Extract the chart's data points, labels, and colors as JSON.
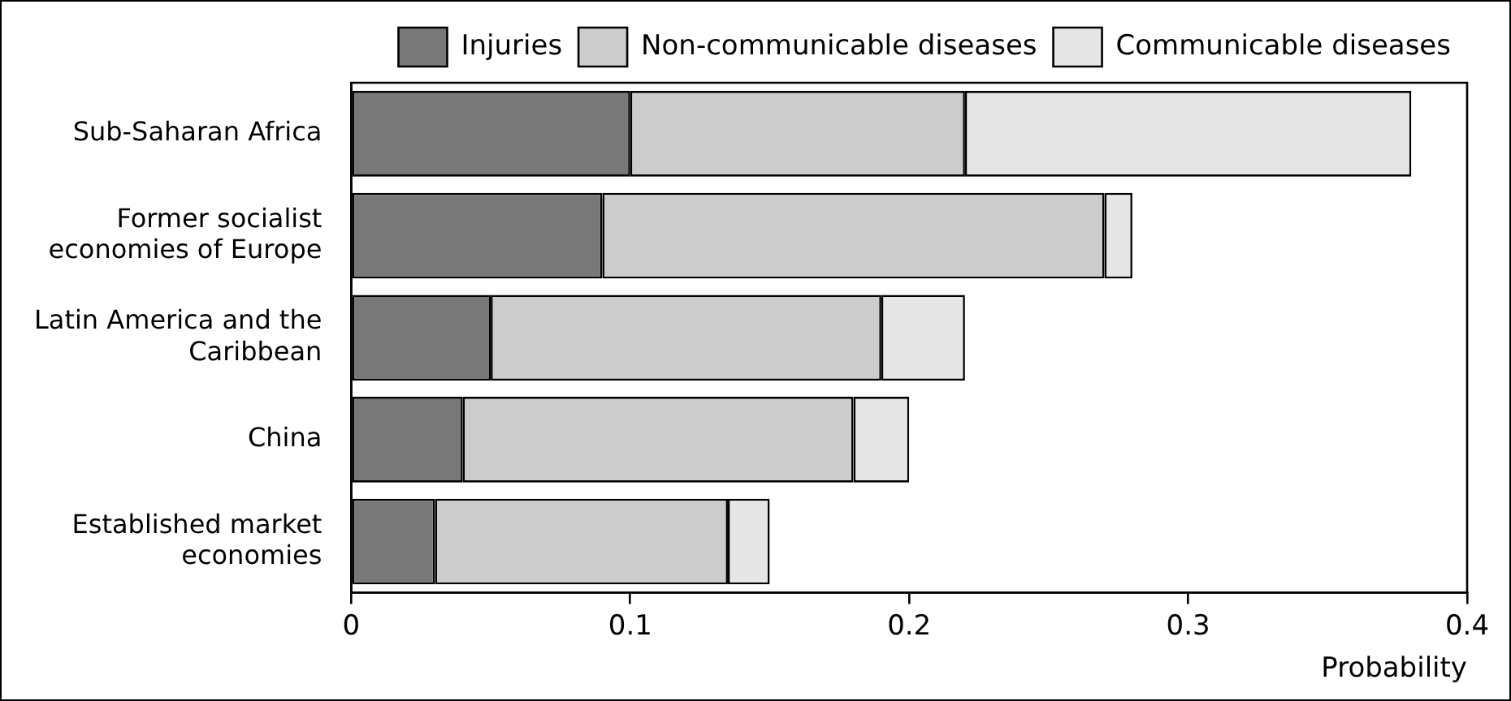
{
  "chart_data": {
    "type": "bar",
    "orientation": "horizontal",
    "stacked": true,
    "xlabel": "Probability",
    "categories": [
      "Sub-Saharan Africa",
      "Former socialist economies of Europe",
      "Latin America and the Caribbean",
      "China",
      "Established market economies"
    ],
    "series": [
      {
        "name": "Injuries",
        "color": "#787878",
        "values": [
          0.1,
          0.09,
          0.05,
          0.04,
          0.03
        ]
      },
      {
        "name": "Non-communicable diseases",
        "color": "#cccccc",
        "values": [
          0.12,
          0.18,
          0.14,
          0.14,
          0.105
        ]
      },
      {
        "name": "Communicable diseases",
        "color": "#e6e6e6",
        "values": [
          0.16,
          0.01,
          0.03,
          0.02,
          0.015
        ]
      }
    ],
    "xlim": [
      0,
      0.4
    ],
    "xticks": [
      0,
      0.1,
      0.2,
      0.3,
      0.4
    ],
    "legend": "top right"
  }
}
